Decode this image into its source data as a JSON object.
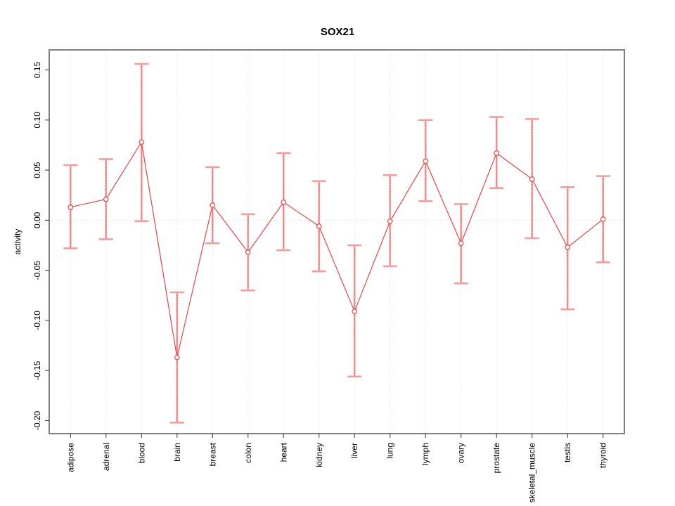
{
  "chart_data": {
    "type": "line",
    "title": "SOX21",
    "xlabel": "",
    "ylabel": "activity",
    "categories": [
      "adipose",
      "adrenal",
      "blood",
      "brain",
      "breast",
      "colon",
      "heart",
      "kidney",
      "liver",
      "lung",
      "lymph",
      "ovary",
      "prostate",
      "skeletal_muscle",
      "testis",
      "thyroid"
    ],
    "series": [
      {
        "name": "activity",
        "values": [
          0.013,
          0.021,
          0.078,
          -0.137,
          0.015,
          -0.032,
          0.018,
          -0.006,
          -0.091,
          -0.001,
          0.059,
          -0.023,
          0.067,
          0.041,
          -0.027,
          0.001
        ],
        "err_high": [
          0.055,
          0.061,
          0.156,
          -0.072,
          0.053,
          0.006,
          0.067,
          0.039,
          -0.025,
          0.045,
          0.1,
          0.016,
          0.103,
          0.101,
          0.033,
          0.044
        ],
        "err_low": [
          -0.028,
          -0.019,
          -0.001,
          -0.202,
          -0.023,
          -0.07,
          -0.03,
          -0.051,
          -0.156,
          -0.046,
          0.019,
          -0.063,
          0.032,
          -0.018,
          -0.089,
          -0.042
        ]
      }
    ],
    "ytick_values": [
      -0.2,
      -0.15,
      -0.1,
      -0.05,
      0.0,
      0.05,
      0.1,
      0.15
    ],
    "ytick_labels": [
      "-0.20",
      "-0.15",
      "-0.10",
      "-0.05",
      "0.00",
      "0.05",
      "0.10",
      "0.15"
    ],
    "ylim": [
      -0.213,
      0.17
    ],
    "xlim": [
      0.4,
      16.6
    ],
    "grid": {
      "vertical": "per-category",
      "horizontal": "zero-line-only",
      "style": "dotted"
    },
    "legend": "none",
    "colors": {
      "point_line": "#e84444",
      "error_bar": "#f69b9b",
      "error_core": "#e64f4f",
      "grid": "#d9d9d9",
      "frame": "#7f7f7f",
      "tick": "#333333",
      "text": "#000000",
      "background": "#ffffff"
    }
  }
}
